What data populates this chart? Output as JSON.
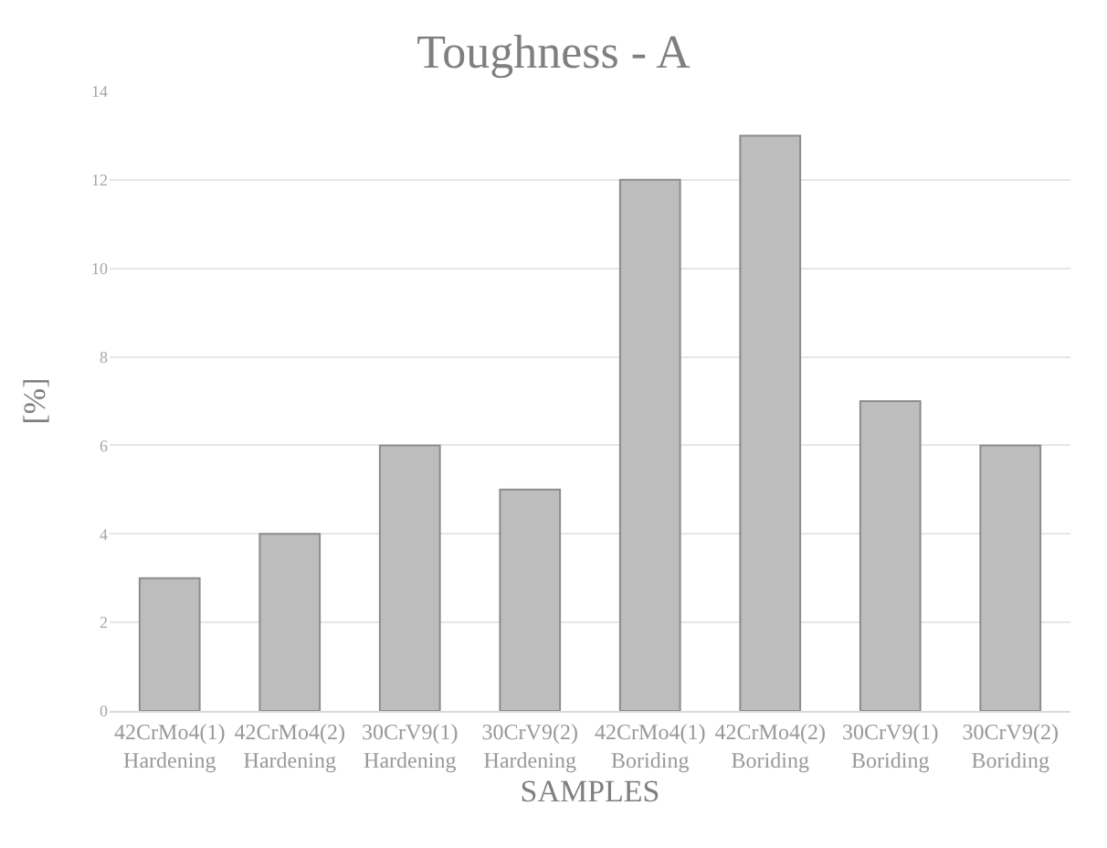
{
  "chart_data": {
    "type": "bar",
    "title": "Toughness - A",
    "xlabel": "SAMPLES",
    "ylabel": "[%]",
    "categories": [
      "42CrMo4(1)\nHardening",
      "42CrMo4(2)\nHardening",
      "30CrV9(1)\nHardening",
      "30CrV9(2)\nHardening",
      "42CrMo4(1)\nBoriding",
      "42CrMo4(2)\nBoriding",
      "30CrV9(1)\nBoriding",
      "30CrV9(2)\nBoriding"
    ],
    "values": [
      3,
      4,
      6,
      5,
      12,
      13,
      7,
      6
    ],
    "color": "#bdbdbd",
    "ylim": [
      0,
      14
    ],
    "yticks": [
      0,
      2,
      4,
      6,
      8,
      10,
      12,
      14
    ],
    "grid": "y"
  }
}
